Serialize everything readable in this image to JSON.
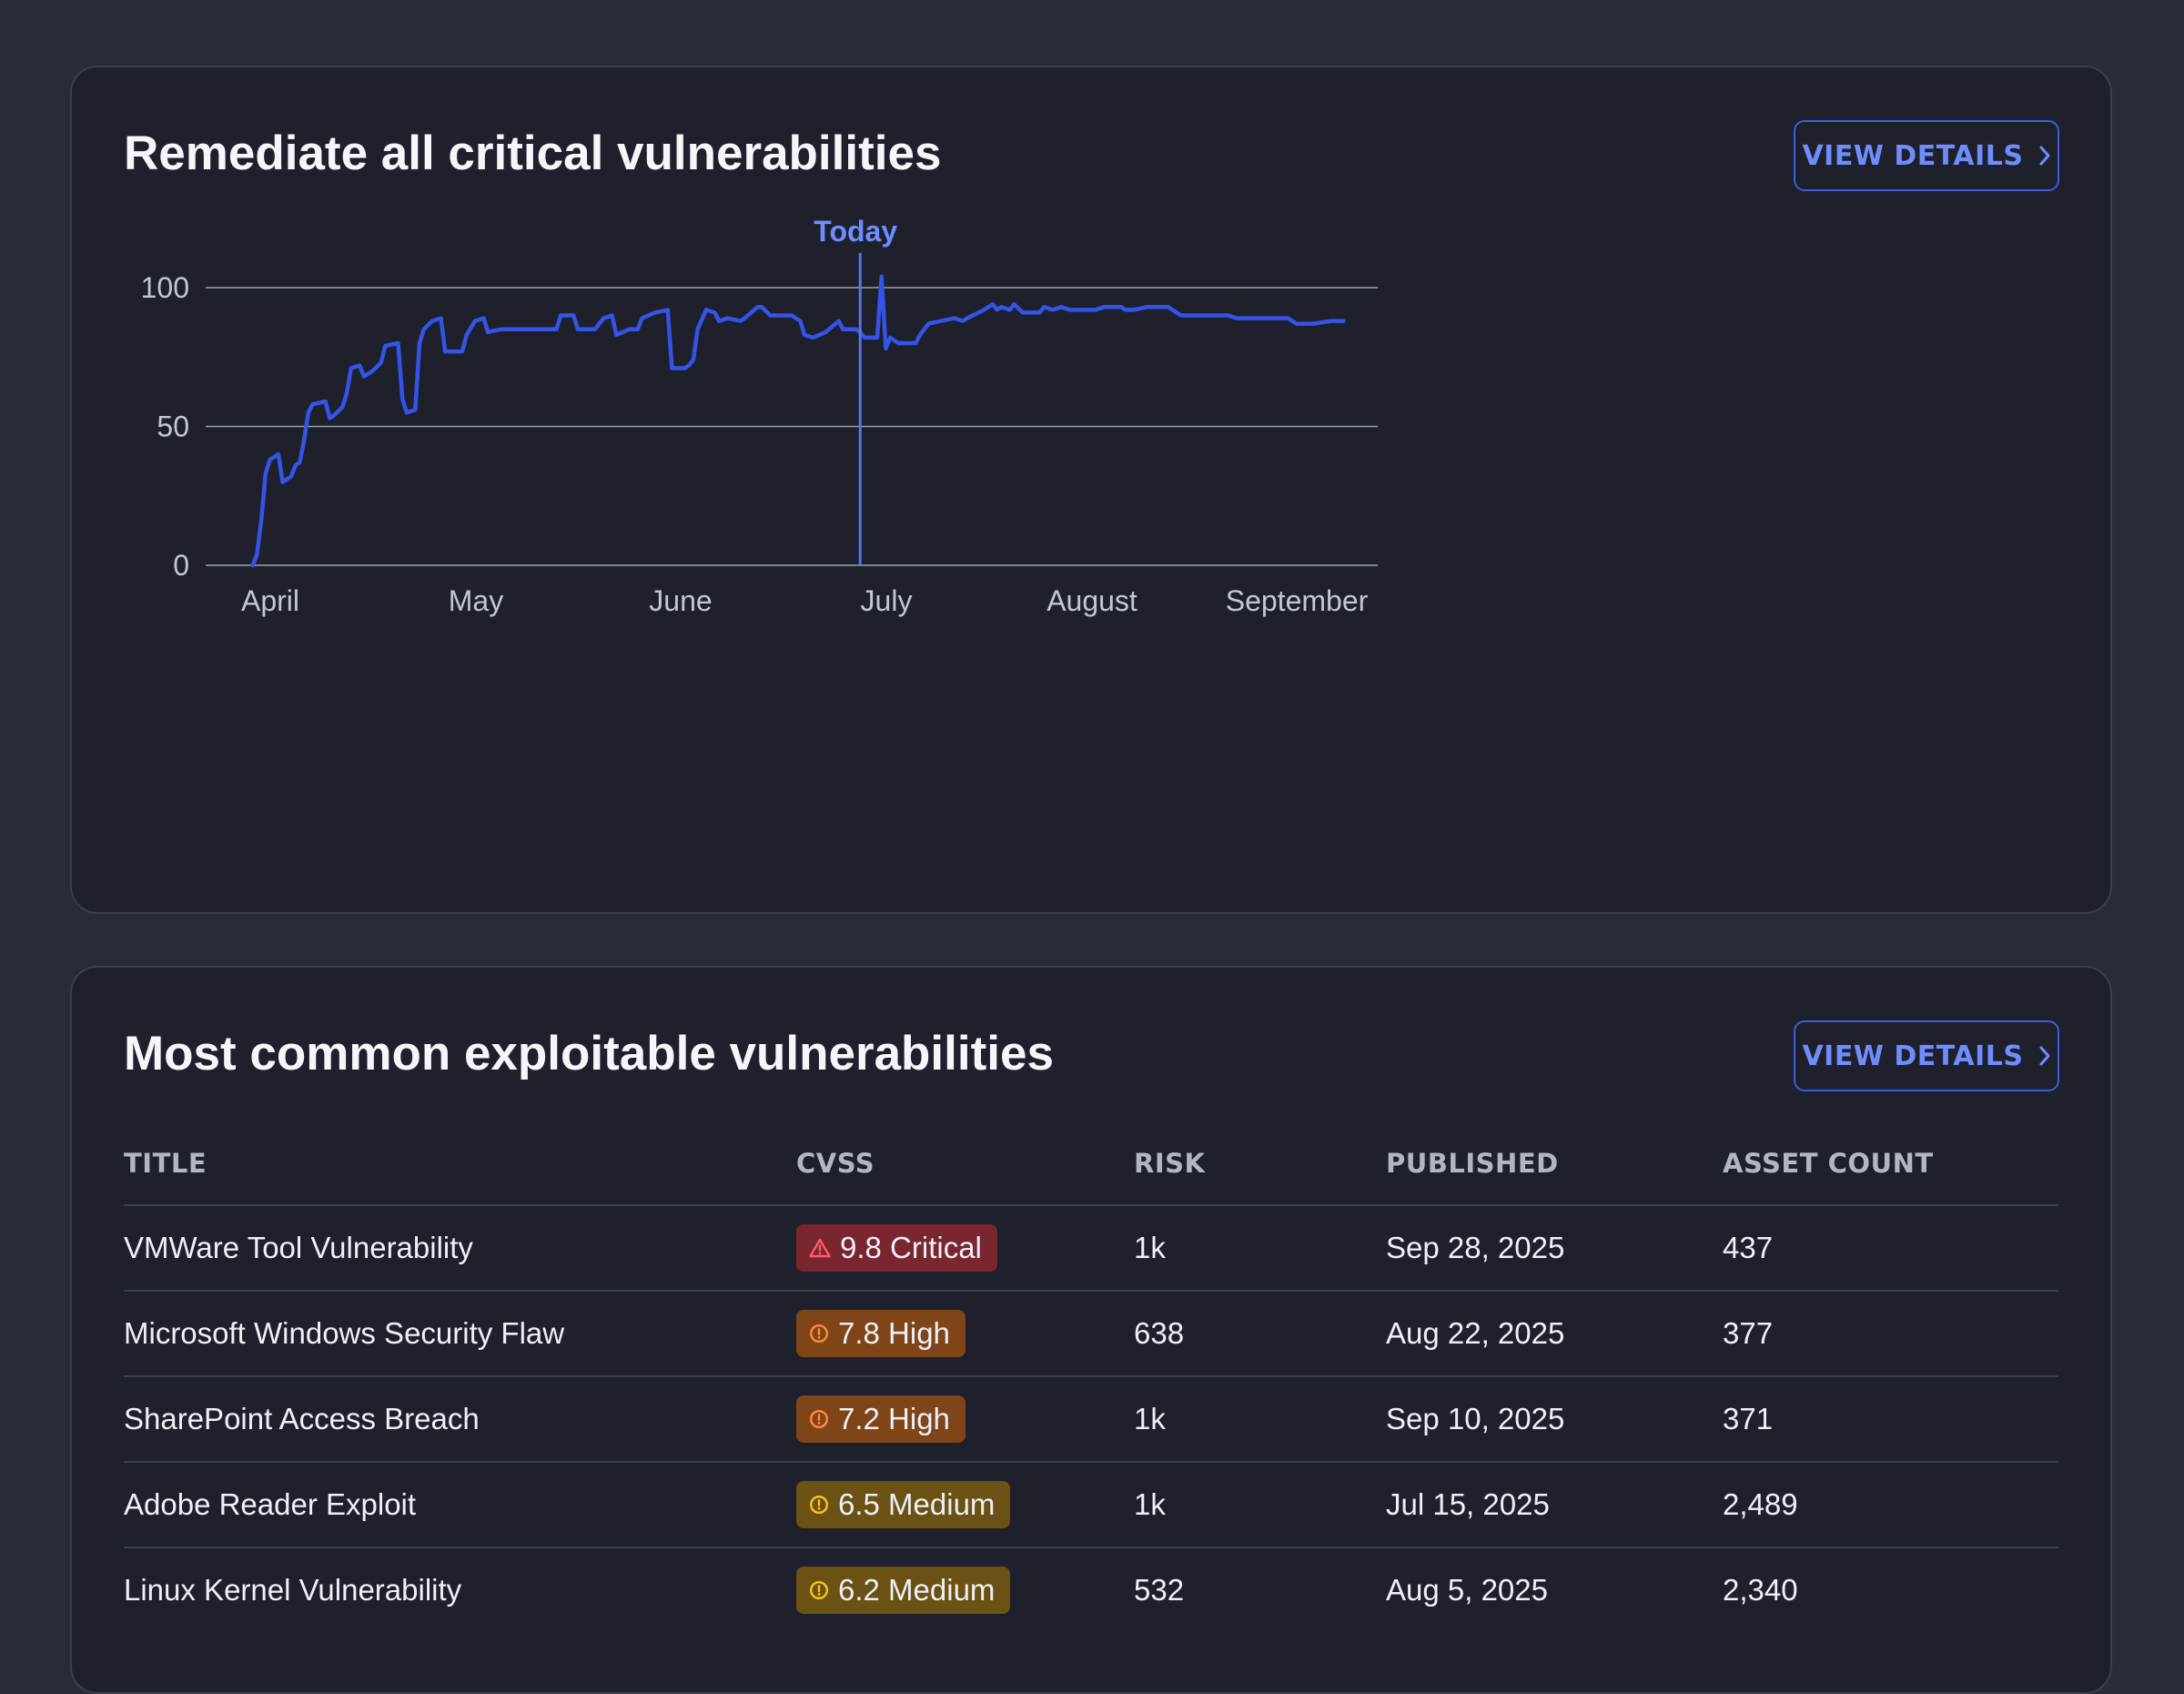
{
  "colors": {
    "accent": "#3e5ee0",
    "line": "#3354e6",
    "critical_bg": "#7a2630",
    "critical_icon": "#ff5c6c",
    "high_bg": "#7f4418",
    "high_icon": "#ff8a3c",
    "medium_bg": "#6b5113",
    "medium_icon": "#ffc21a"
  },
  "remediation": {
    "title": "Remediate all critical vulnerabilities",
    "view_details_label": "VIEW DETAILS",
    "chart_data": {
      "type": "line",
      "title": "Remediate all critical vulnerabilities",
      "xlabel": "",
      "ylabel": "",
      "ylim": [
        0,
        100
      ],
      "y_ticks": [
        0,
        50,
        100
      ],
      "x_ticks": [
        "April",
        "May",
        "June",
        "July",
        "August",
        "September"
      ],
      "grid": true,
      "marker": {
        "label": "Today",
        "x": "2025-09-01"
      },
      "series": [
        {
          "values": [
            [
              "2025-04-12",
              0
            ],
            [
              "2025-04-13",
              4
            ],
            [
              "2025-04-14",
              16
            ],
            [
              "2025-04-15",
              33
            ],
            [
              "2025-04-16",
              38
            ],
            [
              "2025-04-18",
              40
            ],
            [
              "2025-04-19",
              30
            ],
            [
              "2025-04-21",
              32
            ],
            [
              "2025-04-22",
              36
            ],
            [
              "2025-04-23",
              37
            ],
            [
              "2025-04-24",
              45
            ],
            [
              "2025-04-25",
              55
            ],
            [
              "2025-04-26",
              58
            ],
            [
              "2025-04-29",
              59
            ],
            [
              "2025-04-30",
              53
            ],
            [
              "2025-05-01",
              54
            ],
            [
              "2025-05-03",
              57
            ],
            [
              "2025-05-04",
              62
            ],
            [
              "2025-05-05",
              71
            ],
            [
              "2025-05-07",
              72
            ],
            [
              "2025-05-08",
              68
            ],
            [
              "2025-05-09",
              69
            ],
            [
              "2025-05-10",
              70
            ],
            [
              "2025-05-12",
              73
            ],
            [
              "2025-05-13",
              79
            ],
            [
              "2025-05-16",
              80
            ],
            [
              "2025-05-17",
              60
            ],
            [
              "2025-05-18",
              55
            ],
            [
              "2025-05-20",
              56
            ],
            [
              "2025-05-21",
              80
            ],
            [
              "2025-05-22",
              85
            ],
            [
              "2025-05-24",
              88
            ],
            [
              "2025-05-26",
              89
            ],
            [
              "2025-05-27",
              77
            ],
            [
              "2025-05-31",
              77
            ],
            [
              "2025-06-01",
              83
            ],
            [
              "2025-06-03",
              88
            ],
            [
              "2025-06-05",
              89
            ],
            [
              "2025-06-06",
              84
            ],
            [
              "2025-06-09",
              85
            ],
            [
              "2025-06-16",
              85
            ],
            [
              "2025-06-22",
              85
            ],
            [
              "2025-06-23",
              90
            ],
            [
              "2025-06-26",
              90
            ],
            [
              "2025-06-27",
              85
            ],
            [
              "2025-07-01",
              85
            ],
            [
              "2025-07-03",
              89
            ],
            [
              "2025-07-05",
              90
            ],
            [
              "2025-07-06",
              83
            ],
            [
              "2025-07-09",
              85
            ],
            [
              "2025-07-11",
              85
            ],
            [
              "2025-07-12",
              89
            ],
            [
              "2025-07-15",
              91
            ],
            [
              "2025-07-18",
              92
            ],
            [
              "2025-07-19",
              71
            ],
            [
              "2025-07-22",
              71
            ],
            [
              "2025-07-23",
              72
            ],
            [
              "2025-07-24",
              74
            ],
            [
              "2025-07-25",
              85
            ],
            [
              "2025-07-27",
              92
            ],
            [
              "2025-07-29",
              91
            ],
            [
              "2025-07-30",
              88
            ],
            [
              "2025-08-01",
              89
            ],
            [
              "2025-08-04",
              88
            ],
            [
              "2025-08-05",
              89
            ],
            [
              "2025-08-08",
              93
            ],
            [
              "2025-08-09",
              93
            ],
            [
              "2025-08-11",
              90
            ],
            [
              "2025-08-16",
              90
            ],
            [
              "2025-08-18",
              88
            ],
            [
              "2025-08-19",
              83
            ],
            [
              "2025-08-21",
              82
            ],
            [
              "2025-08-24",
              84
            ],
            [
              "2025-08-27",
              88
            ],
            [
              "2025-08-28",
              85
            ],
            [
              "2025-08-31",
              85
            ],
            [
              "2025-09-01",
              84
            ],
            [
              "2025-09-02",
              82
            ],
            [
              "2025-09-04",
              82
            ],
            [
              "2025-09-05",
              82
            ],
            [
              "2025-09-06",
              104
            ],
            [
              "2025-09-07",
              78
            ],
            [
              "2025-09-08",
              82
            ],
            [
              "2025-09-10",
              80
            ],
            [
              "2025-09-14",
              80
            ],
            [
              "2025-09-15",
              83
            ],
            [
              "2025-09-17",
              87
            ],
            [
              "2025-09-20",
              88
            ],
            [
              "2025-09-23",
              89
            ],
            [
              "2025-09-25",
              88
            ],
            [
              "2025-09-26",
              89
            ],
            [
              "2025-09-30",
              92
            ],
            [
              "2025-10-02",
              94
            ],
            [
              "2025-10-03",
              92
            ],
            [
              "2025-10-04",
              93
            ],
            [
              "2025-10-06",
              92
            ],
            [
              "2025-10-07",
              94
            ],
            [
              "2025-10-09",
              91
            ],
            [
              "2025-10-13",
              91
            ],
            [
              "2025-10-14",
              93
            ],
            [
              "2025-10-16",
              92
            ],
            [
              "2025-10-18",
              93
            ],
            [
              "2025-10-20",
              92
            ],
            [
              "2025-10-26",
              92
            ],
            [
              "2025-10-28",
              93
            ],
            [
              "2025-11-01",
              93
            ],
            [
              "2025-11-02",
              92
            ],
            [
              "2025-11-04",
              92
            ],
            [
              "2025-11-07",
              93
            ],
            [
              "2025-11-12",
              93
            ],
            [
              "2025-11-15",
              90
            ],
            [
              "2025-11-26",
              90
            ],
            [
              "2025-11-28",
              89
            ],
            [
              "2025-12-05",
              89
            ],
            [
              "2025-12-10",
              89
            ],
            [
              "2025-12-12",
              87
            ],
            [
              "2025-12-16",
              87
            ],
            [
              "2025-12-20",
              88
            ],
            [
              "2025-12-23",
              88
            ]
          ]
        }
      ]
    }
  },
  "exploitable": {
    "title": "Most common exploitable vulnerabilities",
    "view_details_label": "VIEW DETAILS",
    "columns": [
      "TITLE",
      "CVSS",
      "RISK",
      "PUBLISHED",
      "ASSET COUNT"
    ],
    "rows": [
      {
        "title": "VMWare Tool Vulnerability",
        "cvss": "9.8 Critical",
        "severity": "critical",
        "risk": "1k",
        "published": "Sep 28, 2025",
        "asset_count": "437"
      },
      {
        "title": "Microsoft Windows Security Flaw",
        "cvss": "7.8 High",
        "severity": "high",
        "risk": "638",
        "published": "Aug 22, 2025",
        "asset_count": "377"
      },
      {
        "title": "SharePoint Access Breach",
        "cvss": "7.2 High",
        "severity": "high",
        "risk": "1k",
        "published": "Sep 10, 2025",
        "asset_count": "371"
      },
      {
        "title": "Adobe Reader Exploit",
        "cvss": "6.5 Medium",
        "severity": "medium",
        "risk": "1k",
        "published": "Jul 15, 2025",
        "asset_count": "2,489"
      },
      {
        "title": "Linux Kernel Vulnerability",
        "cvss": "6.2 Medium",
        "severity": "medium",
        "risk": "532",
        "published": "Aug 5, 2025",
        "asset_count": "2,340"
      }
    ]
  }
}
